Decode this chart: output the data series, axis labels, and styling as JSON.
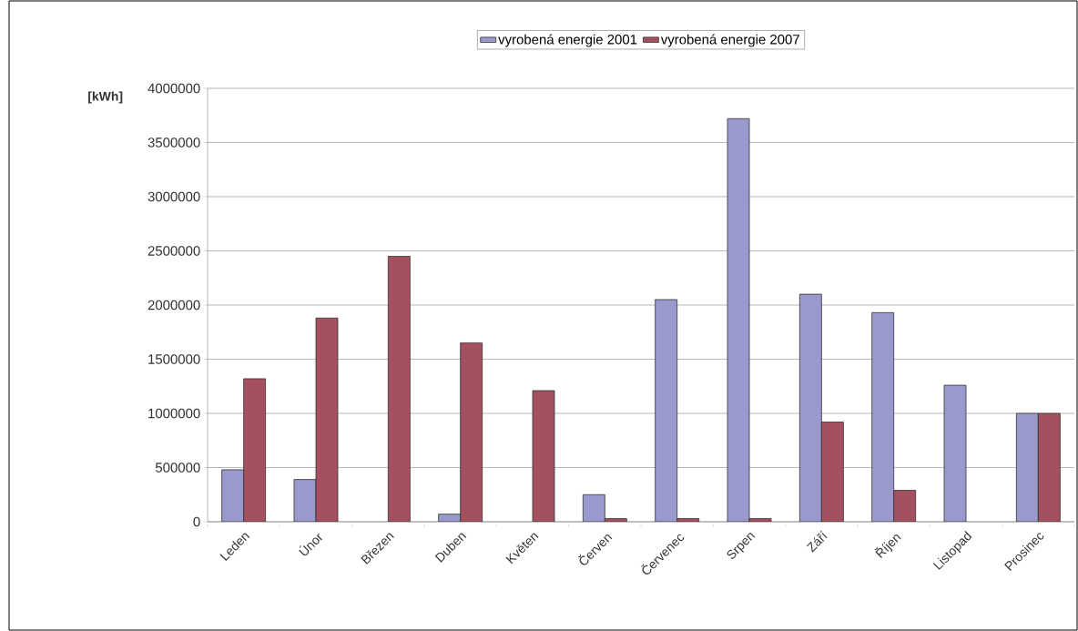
{
  "chart_data": {
    "type": "bar",
    "ylabel": "[kWh]",
    "categories": [
      "Leden",
      "Únor",
      "Březen",
      "Duben",
      "Květen",
      "Červen",
      "Červenec",
      "Srpen",
      "Září",
      "Říjen",
      "Listopad",
      "Prosinec"
    ],
    "series": [
      {
        "name": "vyrobená energie 2001",
        "color": "#9999cc",
        "values": [
          480000,
          390000,
          null,
          70000,
          null,
          250000,
          2050000,
          3720000,
          2100000,
          1930000,
          1260000,
          1000000
        ]
      },
      {
        "name": "vyrobená energie 2007",
        "color": "#a5505f",
        "values": [
          1320000,
          1880000,
          2450000,
          1650000,
          1210000,
          30000,
          30000,
          30000,
          920000,
          290000,
          null,
          1000000
        ]
      }
    ],
    "ylim": [
      0,
      4000000
    ],
    "yticks": [
      0,
      500000,
      1000000,
      1500000,
      2000000,
      2500000,
      3000000,
      3500000,
      4000000
    ],
    "grid": "y",
    "legend": "top"
  }
}
